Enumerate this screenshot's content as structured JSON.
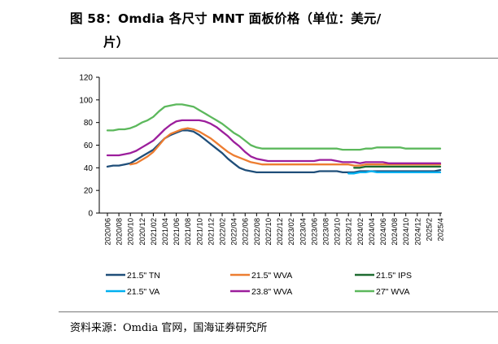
{
  "header": {
    "title_line1": "图 58：Omdia 各尺寸 MNT 面板价格（单位：美元/",
    "title_line2": "片）"
  },
  "footer": {
    "source": "资料来源：Omdia 官网，国海证券研究所"
  },
  "chart_data": {
    "type": "line",
    "title": "",
    "xlabel": "",
    "ylabel": "",
    "ylim": [
      0,
      120
    ],
    "yticks": [
      0,
      20,
      40,
      60,
      80,
      100,
      120
    ],
    "grid": false,
    "legend_position": "bottom",
    "x": [
      "2020/06",
      "2020/07",
      "2020/08",
      "2020/09",
      "2020/10",
      "2020/11",
      "2020/12",
      "2021/01",
      "2021/02",
      "2021/03",
      "2021/04",
      "2021/05",
      "2021/06",
      "2021/07",
      "2021/08",
      "2021/09",
      "2021/10",
      "2021/11",
      "2021/12",
      "2022/01",
      "2022/02",
      "2022/03",
      "2022/04",
      "2022/05",
      "2022/06",
      "2022/07",
      "2022/08",
      "2022/09",
      "2022/10",
      "2022/11",
      "2022/12",
      "2023/01",
      "2023/02",
      "2023/03",
      "2023/04",
      "2023/05",
      "2023/06",
      "2023/07",
      "2023/08",
      "2023/09",
      "2023/10",
      "2023/11",
      "2023/12",
      "2024/01",
      "2024/02",
      "2024/03",
      "2024/04",
      "2024/05",
      "2024/06",
      "2024/07",
      "2024/08",
      "2024/09",
      "2024/10",
      "2024/11",
      "2024/12",
      "2025/1",
      "2025/2",
      "2025/3",
      "2025/4"
    ],
    "tick_labels": [
      "2020/06",
      "2020/08",
      "2020/10",
      "2020/12",
      "2021/02",
      "2021/04",
      "2021/06",
      "2021/08",
      "2021/10",
      "2021/12",
      "2022/02",
      "2022/04",
      "2022/06",
      "2022/08",
      "2022/10",
      "2022/12",
      "2023/02",
      "2023/04",
      "2023/06",
      "2023/08",
      "2023/10",
      "2023/12",
      "2024/02",
      "2024/04",
      "2024/06",
      "2024/08",
      "2024/10",
      "2024/12",
      "2025/2",
      "2025/4"
    ],
    "series": [
      {
        "name": "21.5\" TN",
        "color": "#1f4e79",
        "values": [
          41,
          42,
          42,
          43,
          44,
          47,
          50,
          53,
          56,
          61,
          66,
          69,
          71,
          73,
          73,
          72,
          69,
          65,
          61,
          57,
          53,
          48,
          44,
          40,
          38,
          37,
          36,
          36,
          36,
          36,
          36,
          36,
          36,
          36,
          36,
          36,
          36,
          37,
          37,
          37,
          37,
          36,
          36,
          36,
          37,
          37,
          37,
          37,
          37,
          37,
          37,
          37,
          37,
          37,
          37,
          37,
          37,
          37,
          38
        ]
      },
      {
        "name": "21.5\" WVA",
        "color": "#ed7d31",
        "values": [
          null,
          null,
          null,
          null,
          43,
          44,
          47,
          50,
          54,
          60,
          66,
          70,
          72,
          74,
          75,
          74,
          72,
          69,
          66,
          62,
          58,
          54,
          51,
          49,
          47,
          45,
          44,
          43,
          43,
          43,
          43,
          43,
          43,
          43,
          43,
          43,
          43,
          43,
          43,
          43,
          43,
          43,
          43,
          42,
          42,
          43,
          43,
          43,
          43,
          43,
          43,
          43,
          43,
          43,
          43,
          43,
          43,
          43,
          43
        ]
      },
      {
        "name": "21.5\" IPS",
        "color": "#1e6b30",
        "values": [
          null,
          null,
          null,
          null,
          null,
          null,
          null,
          null,
          null,
          null,
          null,
          null,
          null,
          null,
          null,
          null,
          null,
          null,
          null,
          null,
          null,
          null,
          null,
          null,
          null,
          null,
          null,
          null,
          null,
          null,
          null,
          null,
          null,
          null,
          null,
          null,
          null,
          null,
          null,
          null,
          null,
          null,
          null,
          40,
          40,
          41,
          41,
          41,
          41,
          41,
          41,
          41,
          41,
          41,
          41,
          41,
          41,
          41,
          41
        ]
      },
      {
        "name": "21.5\" VA",
        "color": "#00b0f0",
        "values": [
          null,
          null,
          null,
          null,
          null,
          null,
          null,
          null,
          null,
          null,
          null,
          null,
          null,
          null,
          null,
          null,
          null,
          null,
          null,
          null,
          null,
          null,
          null,
          null,
          null,
          null,
          null,
          null,
          null,
          null,
          null,
          null,
          null,
          null,
          null,
          null,
          null,
          null,
          null,
          null,
          null,
          null,
          35,
          35,
          36,
          36,
          37,
          36,
          36,
          36,
          36,
          36,
          36,
          36,
          36,
          36,
          36,
          36,
          36
        ]
      },
      {
        "name": "23.8\" WVA",
        "color": "#9c1e9c",
        "values": [
          51,
          51,
          51,
          52,
          53,
          55,
          58,
          61,
          64,
          69,
          74,
          78,
          81,
          82,
          82,
          82,
          82,
          81,
          79,
          76,
          72,
          68,
          63,
          59,
          54,
          50,
          48,
          47,
          46,
          46,
          46,
          46,
          46,
          46,
          46,
          46,
          46,
          47,
          47,
          47,
          46,
          45,
          45,
          45,
          44,
          45,
          45,
          45,
          45,
          44,
          44,
          44,
          44,
          44,
          44,
          44,
          44,
          44,
          44
        ]
      },
      {
        "name": "27\" WVA",
        "color": "#5cb85c",
        "values": [
          73,
          73,
          74,
          74,
          75,
          77,
          80,
          82,
          85,
          90,
          94,
          95,
          96,
          96,
          95,
          94,
          91,
          88,
          85,
          82,
          79,
          75,
          71,
          68,
          64,
          60,
          58,
          57,
          57,
          57,
          57,
          57,
          57,
          57,
          57,
          57,
          57,
          57,
          57,
          57,
          57,
          56,
          56,
          56,
          56,
          57,
          57,
          58,
          58,
          58,
          58,
          58,
          57,
          57,
          57,
          57,
          57,
          57,
          57
        ]
      }
    ]
  }
}
